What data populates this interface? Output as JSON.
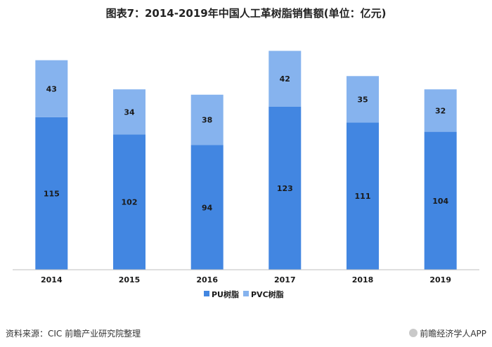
{
  "title": "图表7：2014-2019年中国人工革树脂销售额(单位：亿元)",
  "footer": {
    "source": "资料来源：CIC 前瞻产业研究院整理",
    "brand": "前瞻经济学人APP"
  },
  "colors": {
    "pu": "#4286e1",
    "pvc": "#86b3ee"
  },
  "chart_data": {
    "type": "bar",
    "stacked": true,
    "categories": [
      "2014",
      "2015",
      "2016",
      "2017",
      "2018",
      "2019"
    ],
    "series": [
      {
        "name": "PU树脂",
        "values": [
          115,
          102,
          94,
          123,
          111,
          104
        ]
      },
      {
        "name": "PVC树脂",
        "values": [
          43,
          34,
          38,
          42,
          35,
          32
        ]
      }
    ],
    "ylim": [
      0,
      170
    ],
    "legend": "bottom",
    "grid": false
  }
}
